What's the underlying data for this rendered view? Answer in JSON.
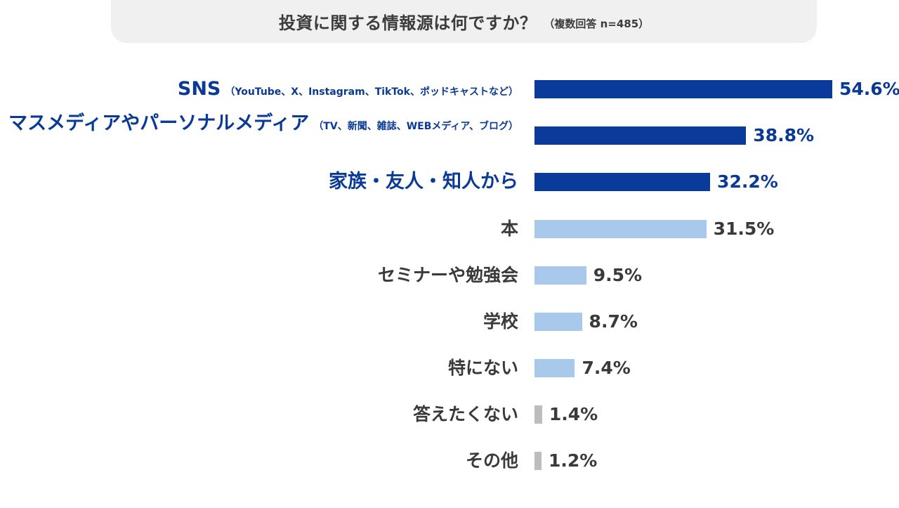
{
  "chart_data": {
    "type": "bar",
    "orientation": "horizontal",
    "title": "投資に関する情報源は何ですか？",
    "subtitle": "（複数回答 n=485）",
    "categories": [
      {
        "label": "SNS",
        "note": "（YouTube、X、Instagram、TikTok、ポッドキャストなど）"
      },
      {
        "label": "マスメディアやパーソナルメディア",
        "note": "（TV、新聞、雑誌、WEBメディア、ブログ）"
      },
      {
        "label": "家族・友人・知人から",
        "note": ""
      },
      {
        "label": "本",
        "note": ""
      },
      {
        "label": "セミナーや勉強会",
        "note": ""
      },
      {
        "label": "学校",
        "note": ""
      },
      {
        "label": "特にない",
        "note": ""
      },
      {
        "label": "答えたくない",
        "note": ""
      },
      {
        "label": "その他",
        "note": ""
      }
    ],
    "values": [
      54.6,
      38.8,
      32.2,
      31.5,
      9.5,
      8.7,
      7.4,
      1.4,
      1.2
    ],
    "value_labels": [
      "54.6%",
      "38.8%",
      "32.2%",
      "31.5%",
      "9.5%",
      "8.7%",
      "7.4%",
      "1.4%",
      "1.2%"
    ],
    "unit": "%",
    "highlight_count": 3,
    "colors": {
      "highlight": "#0a3a9a",
      "normal": "#a8c9ec",
      "minor": "#bdbdbd",
      "highlight_text": "#0a3a95",
      "text": "#3a3a3a"
    },
    "grid": false,
    "legend": "none"
  }
}
